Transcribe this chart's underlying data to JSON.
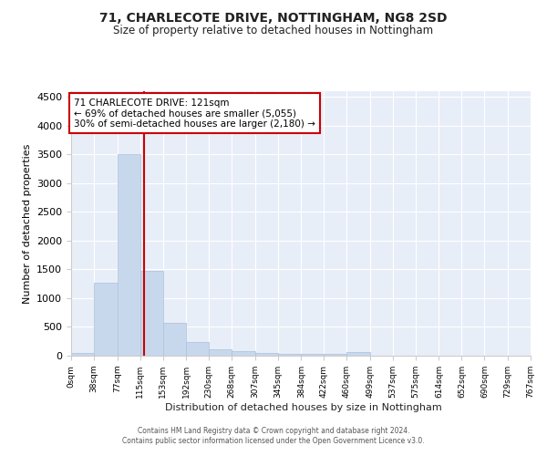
{
  "title1": "71, CHARLECOTE DRIVE, NOTTINGHAM, NG8 2SD",
  "title2": "Size of property relative to detached houses in Nottingham",
  "xlabel": "Distribution of detached houses by size in Nottingham",
  "ylabel": "Number of detached properties",
  "bar_color": "#c8d8ec",
  "bar_edgecolor": "#aac0dc",
  "red_line_x": 121,
  "annotation_text": "71 CHARLECOTE DRIVE: 121sqm\n← 69% of detached houses are smaller (5,055)\n30% of semi-detached houses are larger (2,180) →",
  "annotation_box_color": "#ffffff",
  "annotation_edge_color": "#cc0000",
  "vline_color": "#cc0000",
  "bin_edges": [
    0,
    38,
    77,
    115,
    153,
    192,
    230,
    268,
    307,
    345,
    384,
    422,
    460,
    499,
    537,
    575,
    614,
    652,
    690,
    729,
    767
  ],
  "bar_heights": [
    50,
    1270,
    3500,
    1480,
    570,
    240,
    115,
    85,
    55,
    30,
    25,
    25,
    60,
    5,
    0,
    0,
    0,
    0,
    0,
    0
  ],
  "ylim": [
    0,
    4600
  ],
  "yticks": [
    0,
    500,
    1000,
    1500,
    2000,
    2500,
    3000,
    3500,
    4000,
    4500
  ],
  "footer1": "Contains HM Land Registry data © Crown copyright and database right 2024.",
  "footer2": "Contains public sector information licensed under the Open Government Licence v3.0.",
  "figure_bg": "#ffffff",
  "plot_bg": "#e8eef8"
}
